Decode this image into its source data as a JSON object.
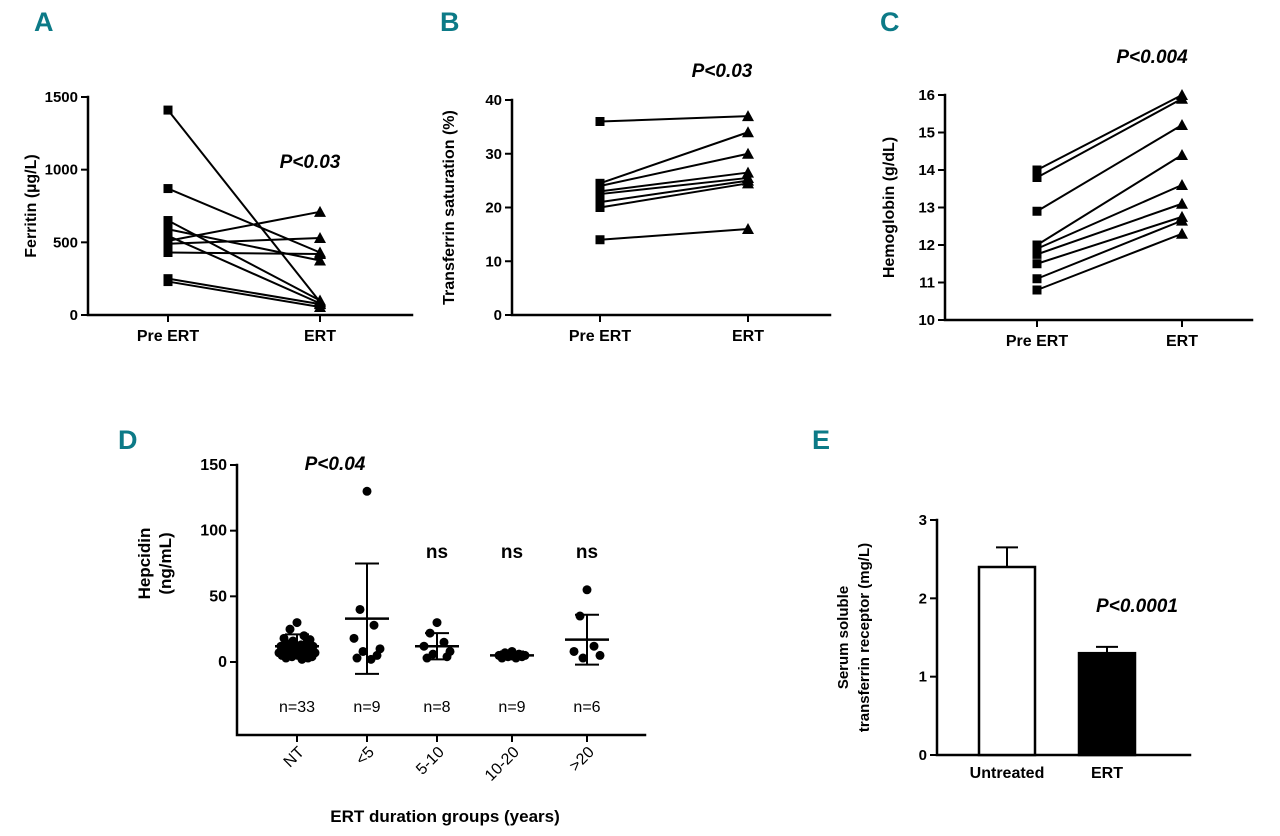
{
  "figure": {
    "background": "#ffffff",
    "ink_color": "#000000",
    "panel_letter_color": "#0c7a87"
  },
  "chart_data": [
    {
      "panel": "A",
      "type": "line",
      "variant": "paired-before-after",
      "p_value": "P<0.03",
      "ylabel": "Ferritin (µg/L)",
      "categories": [
        "Pre ERT",
        "ERT"
      ],
      "ylim": [
        0,
        1500
      ],
      "yticks": [
        0,
        500,
        1000,
        1500
      ],
      "pairs": [
        [
          1410,
          90
        ],
        [
          870,
          430
        ],
        [
          650,
          100
        ],
        [
          590,
          375
        ],
        [
          545,
          80
        ],
        [
          510,
          710
        ],
        [
          490,
          530
        ],
        [
          430,
          420
        ],
        [
          250,
          75
        ],
        [
          230,
          55
        ]
      ]
    },
    {
      "panel": "B",
      "type": "line",
      "variant": "paired-before-after",
      "p_value": "P<0.03",
      "ylabel": "Transferrin saturation (%)",
      "categories": [
        "Pre ERT",
        "ERT"
      ],
      "ylim": [
        0,
        40
      ],
      "yticks": [
        0,
        10,
        20,
        30,
        40
      ],
      "pairs": [
        [
          36,
          37
        ],
        [
          24.5,
          34
        ],
        [
          24,
          30
        ],
        [
          23,
          26.5
        ],
        [
          22.5,
          25.5
        ],
        [
          21,
          25
        ],
        [
          20,
          24.5
        ],
        [
          14,
          16
        ]
      ]
    },
    {
      "panel": "C",
      "type": "line",
      "variant": "paired-before-after",
      "p_value": "P<0.004",
      "ylabel": "Hemoglobin (g/dL)",
      "categories": [
        "Pre ERT",
        "ERT"
      ],
      "ylim": [
        10,
        16
      ],
      "yticks": [
        10,
        11,
        12,
        13,
        14,
        15,
        16
      ],
      "pairs": [
        [
          14.0,
          16.0
        ],
        [
          13.8,
          15.9
        ],
        [
          12.9,
          15.2
        ],
        [
          12.0,
          14.4
        ],
        [
          11.9,
          13.6
        ],
        [
          11.75,
          13.1
        ],
        [
          11.5,
          12.75
        ],
        [
          11.1,
          12.65
        ],
        [
          10.8,
          12.3
        ]
      ]
    },
    {
      "panel": "D",
      "type": "scatter",
      "p_value": "P<0.04",
      "ns_label": "ns",
      "ylabel_lines": [
        "Hepcidin",
        "(ng/mL)"
      ],
      "xlabel": "ERT duration groups (years)",
      "ylim": [
        0,
        150
      ],
      "yticks": [
        0,
        50,
        100,
        150
      ],
      "groups": [
        {
          "label": "NT",
          "n": "n=33",
          "ns": false,
          "mean": 12,
          "sd": 9,
          "values": [
            2,
            3,
            3,
            4,
            4,
            5,
            5,
            6,
            6,
            7,
            7,
            7,
            8,
            8,
            8,
            9,
            9,
            9,
            10,
            10,
            11,
            11,
            12,
            12,
            13,
            14,
            15,
            16,
            17,
            18,
            20,
            25,
            30
          ]
        },
        {
          "label": "<5",
          "n": "n=9",
          "ns": false,
          "mean": 33,
          "sd": 42,
          "values": [
            130,
            40,
            28,
            18,
            10,
            8,
            5,
            3,
            2
          ]
        },
        {
          "label": "5-10",
          "n": "n=8",
          "ns": true,
          "mean": 12,
          "sd": 10,
          "values": [
            30,
            22,
            15,
            12,
            8,
            6,
            4,
            3
          ]
        },
        {
          "label": "10-20",
          "n": "n=9",
          "ns": true,
          "mean": 5,
          "sd": 3,
          "values": [
            8,
            7,
            6,
            5,
            5,
            4,
            4,
            3,
            3
          ]
        },
        {
          "label": ">20",
          "n": "n=6",
          "ns": true,
          "mean": 17,
          "sd": 19,
          "values": [
            55,
            35,
            12,
            8,
            5,
            3
          ]
        }
      ]
    },
    {
      "panel": "E",
      "type": "bar",
      "p_value": "P<0.0001",
      "ylabel_lines": [
        "Serum soluble",
        "transferrin receptor (mg/L)"
      ],
      "ylim": [
        0,
        3
      ],
      "yticks": [
        0,
        1,
        2,
        3
      ],
      "bars": [
        {
          "label": "Untreated",
          "value": 2.4,
          "error": 0.25,
          "fill": "#ffffff"
        },
        {
          "label": "ERT",
          "value": 1.3,
          "error": 0.08,
          "fill": "#000000"
        }
      ]
    }
  ]
}
